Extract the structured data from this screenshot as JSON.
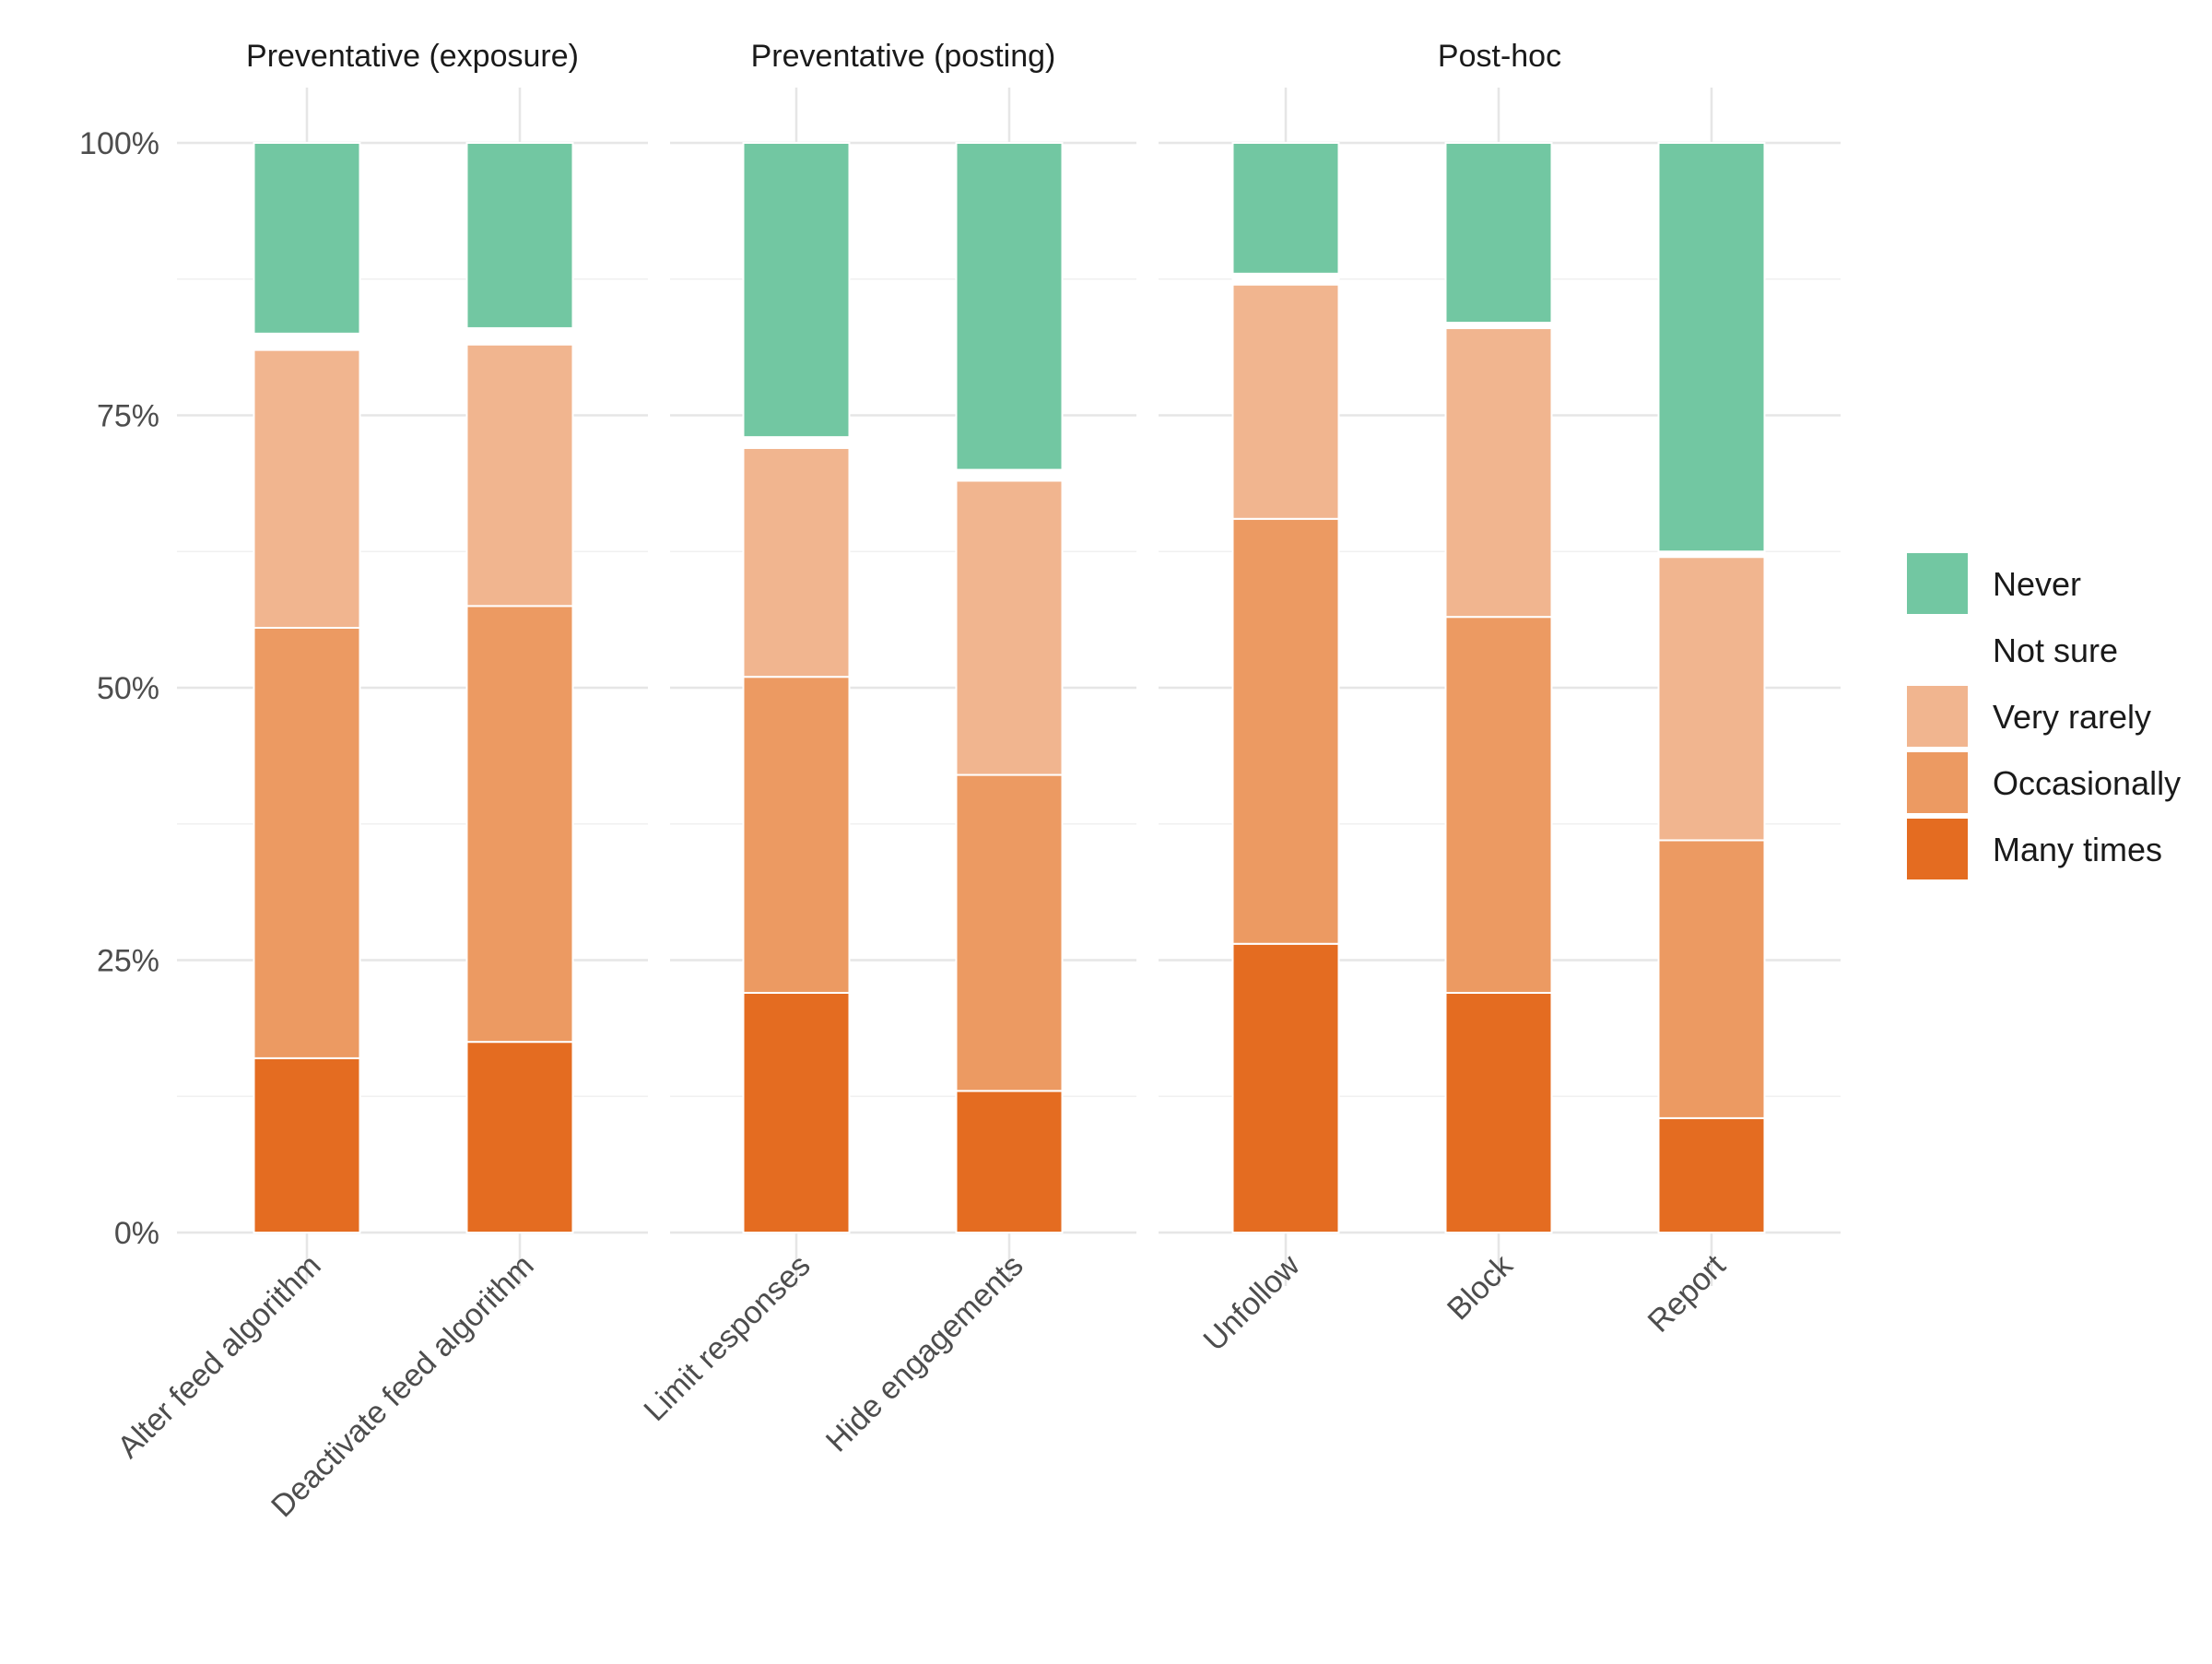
{
  "chart_data": {
    "type": "bar",
    "stacked": true,
    "y_format": "percent",
    "ylim": [
      0,
      100
    ],
    "y_ticks": [
      "0%",
      "25%",
      "50%",
      "75%",
      "100%"
    ],
    "grid": true,
    "legend_position": "right",
    "facets": [
      {
        "title": "Preventative (exposure)",
        "categories": [
          "Alter feed algorithm",
          "Deactivate feed algorithm"
        ]
      },
      {
        "title": "Preventative (posting)",
        "categories": [
          "Limit responses",
          "Hide engagements"
        ]
      },
      {
        "title": "Post-hoc",
        "categories": [
          "Unfollow",
          "Block",
          "Report"
        ]
      }
    ],
    "categories": [
      "Alter feed algorithm",
      "Deactivate feed algorithm",
      "Limit responses",
      "Hide engagements",
      "Unfollow",
      "Block",
      "Report"
    ],
    "series": [
      {
        "name": "Many times",
        "color": "#E46C21",
        "values": [
          16,
          17.5,
          22,
          13,
          26.5,
          22,
          10.5
        ]
      },
      {
        "name": "Occasionally",
        "color": "#EC9A62",
        "values": [
          39.5,
          40,
          29,
          29,
          39,
          34.5,
          25.5
        ]
      },
      {
        "name": "Very rarely",
        "color": "#F1B58F",
        "values": [
          25.5,
          24,
          21,
          27,
          21.5,
          26.5,
          26
        ]
      },
      {
        "name": "Not sure",
        "color": "#FFFFFF",
        "values": [
          1.5,
          1.5,
          1,
          1,
          1,
          0.5,
          0.5
        ]
      },
      {
        "name": "Never",
        "color": "#72C7A2",
        "values": [
          17.5,
          17,
          27,
          30,
          12,
          16.5,
          37.5
        ]
      }
    ],
    "legend_order": [
      "Never",
      "Not sure",
      "Very rarely",
      "Occasionally",
      "Many times"
    ]
  }
}
